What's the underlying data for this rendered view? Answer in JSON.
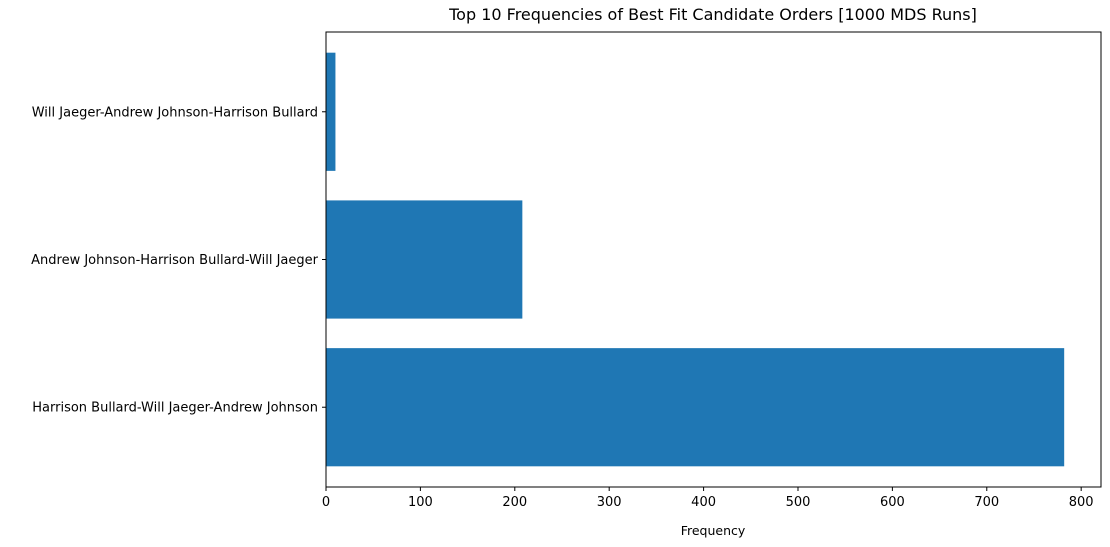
{
  "chart_data": {
    "type": "bar",
    "orientation": "horizontal",
    "title": "Top 10 Frequencies of Best Fit Candidate Orders [1000 MDS Runs]",
    "xlabel": "Frequency",
    "ylabel": "",
    "categories": [
      "Harrison Bullard-Will Jaeger-Andrew Johnson",
      "Andrew Johnson-Harrison Bullard-Will Jaeger",
      "Will Jaeger-Andrew Johnson-Harrison Bullard"
    ],
    "values": [
      782,
      208,
      10
    ],
    "xlim": [
      0,
      821
    ],
    "xticks": [
      0,
      100,
      200,
      300,
      400,
      500,
      600,
      700,
      800
    ],
    "bar_color": "#1f77b4",
    "grid": false,
    "legend": "none"
  }
}
